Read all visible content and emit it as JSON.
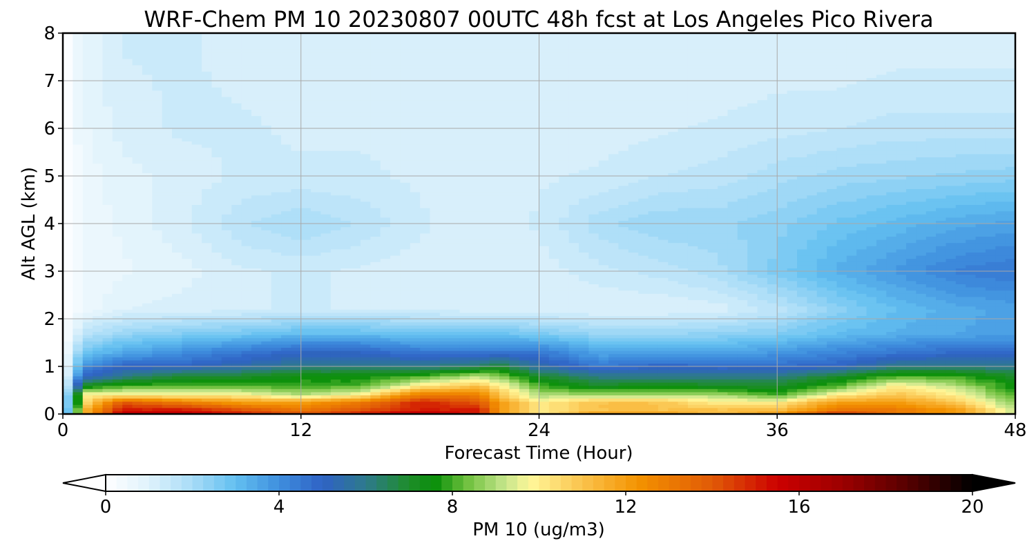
{
  "chart_data": {
    "type": "heatmap",
    "title": "WRF-Chem PM 10  20230807 00UTC 48h fcst at Los Angeles Pico Rivera",
    "xlabel": "Forecast Time (Hour)",
    "ylabel": "Alt AGL (km)",
    "xlim": [
      0,
      48
    ],
    "ylim": [
      0,
      8
    ],
    "x_ticks": [
      0,
      12,
      24,
      36,
      48
    ],
    "y_ticks": [
      0,
      1,
      2,
      3,
      4,
      5,
      6,
      7,
      8
    ],
    "grid": true,
    "x": [
      0,
      1,
      3,
      6,
      9,
      12,
      15,
      18,
      21,
      22,
      24,
      27,
      30,
      33,
      36,
      39,
      42,
      45,
      48
    ],
    "y": [
      0,
      0.1,
      0.25,
      0.4,
      0.6,
      0.8,
      1.0,
      1.3,
      1.7,
      2.2,
      3.0,
      4.0,
      5.0,
      6.0,
      7.0,
      8.0
    ],
    "z": [
      [
        0,
        11,
        16,
        16,
        15,
        14,
        15,
        16,
        15,
        12,
        10,
        12,
        12,
        11,
        12,
        15,
        13,
        12,
        9
      ],
      [
        0,
        11,
        15,
        15,
        14,
        13,
        14,
        15,
        15,
        12,
        10,
        11,
        11,
        11,
        11,
        13,
        13,
        12,
        9
      ],
      [
        0,
        10,
        14,
        13,
        12,
        12,
        13,
        15,
        14,
        12,
        10,
        11,
        11,
        10,
        10,
        12,
        12,
        11,
        8.5
      ],
      [
        0,
        10,
        10,
        10,
        10,
        9,
        10,
        13,
        13,
        11,
        9,
        9,
        9,
        9,
        8,
        10,
        11,
        10,
        8
      ],
      [
        0,
        7,
        8,
        8,
        8,
        8,
        8,
        10,
        11,
        10,
        8,
        7,
        7.5,
        7,
        7,
        8,
        10,
        9,
        7.5
      ],
      [
        0,
        5,
        6,
        7,
        7,
        7.5,
        7.5,
        8,
        9,
        8.5,
        7,
        6,
        6,
        6,
        6,
        7,
        8,
        8,
        7
      ],
      [
        0,
        4,
        5,
        5,
        5.5,
        6,
        6,
        6,
        6.5,
        7,
        5.5,
        4.5,
        5,
        4.8,
        4.8,
        5,
        6,
        6,
        6
      ],
      [
        0,
        2.8,
        3.5,
        4,
        4.5,
        5,
        5,
        4.5,
        4.5,
        4.5,
        4.5,
        3.5,
        3.5,
        3.5,
        3.8,
        4.2,
        4.5,
        4.8,
        4.8
      ],
      [
        0,
        1.6,
        2.2,
        2.5,
        2.7,
        3,
        3,
        2.8,
        2.8,
        2.8,
        2.6,
        2.2,
        2.2,
        2.3,
        2.5,
        3,
        3.3,
        3.5,
        3.6
      ],
      [
        0,
        0.6,
        1.0,
        1.1,
        1.2,
        1.3,
        1.2,
        1.2,
        1.1,
        1.1,
        1.0,
        1.0,
        1.0,
        1.1,
        1.6,
        2.4,
        3.0,
        3.4,
        3.6
      ],
      [
        0,
        0.5,
        0.7,
        0.9,
        1.2,
        1.3,
        1.2,
        1.1,
        1.0,
        1.0,
        1.1,
        1.4,
        1.6,
        1.9,
        2.6,
        3.3,
        3.8,
        4.3,
        4.5
      ],
      [
        0,
        0.6,
        0.8,
        1.2,
        1.7,
        2.0,
        1.7,
        1.3,
        1.1,
        1.1,
        1.3,
        1.9,
        2.2,
        2.2,
        2.4,
        2.8,
        3.1,
        3.4,
        3.6
      ],
      [
        0,
        0.6,
        0.9,
        1.1,
        1.3,
        1.3,
        1.3,
        1.2,
        1.1,
        1.1,
        1.2,
        1.3,
        1.5,
        1.6,
        1.9,
        2.1,
        2.2,
        2.3,
        2.4
      ],
      [
        0,
        0.7,
        1.1,
        1.3,
        1.3,
        1.2,
        1.2,
        1.2,
        1.1,
        1.1,
        1.1,
        1.1,
        1.2,
        1.3,
        1.4,
        1.5,
        1.6,
        1.6,
        1.6
      ],
      [
        0,
        0.8,
        1.2,
        1.3,
        1.2,
        1.1,
        1.1,
        1.1,
        1.1,
        1.1,
        1.1,
        1.1,
        1.1,
        1.1,
        1.2,
        1.2,
        1.3,
        1.3,
        1.3
      ],
      [
        0,
        0.8,
        1.3,
        1.3,
        1.1,
        1.0,
        1.0,
        1.0,
        1.0,
        1.0,
        1.0,
        1.0,
        1.0,
        1.0,
        1.0,
        1.1,
        1.1,
        1.1,
        1.1
      ]
    ],
    "colorbar": {
      "label": "PM 10  (ug/m3)",
      "min": 0,
      "max": 20,
      "ticks": [
        0,
        4,
        8,
        12,
        16,
        20
      ],
      "extend": "both",
      "orientation": "horizontal",
      "colormap": [
        [
          0,
          "#ffffff"
        ],
        [
          1,
          "#dff2fc"
        ],
        [
          2,
          "#a8dcf7"
        ],
        [
          3,
          "#62bff0"
        ],
        [
          4,
          "#3f8fde"
        ],
        [
          5,
          "#2f62c5"
        ],
        [
          6,
          "#2e7a8c"
        ],
        [
          7,
          "#1e8d2a"
        ],
        [
          7.6,
          "#0a8f0a"
        ],
        [
          8.3,
          "#6cbf3c"
        ],
        [
          9.2,
          "#c4e58a"
        ],
        [
          9.8,
          "#fff79a"
        ],
        [
          11,
          "#fbc34c"
        ],
        [
          12.3,
          "#f39200"
        ],
        [
          14,
          "#e15a06"
        ],
        [
          15.5,
          "#cc0000"
        ],
        [
          17,
          "#9c0000"
        ],
        [
          18.5,
          "#560000"
        ],
        [
          20,
          "#000000"
        ]
      ]
    }
  }
}
